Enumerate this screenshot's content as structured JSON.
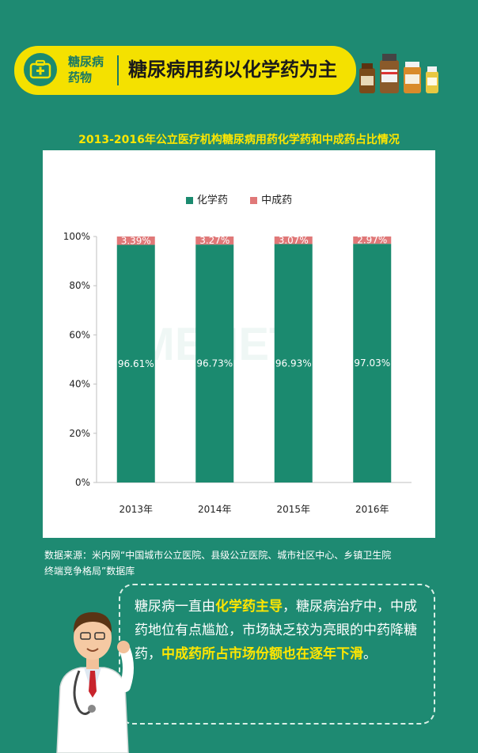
{
  "header": {
    "tag_lines": [
      "糖尿病",
      "药物"
    ],
    "title": "糖尿病用药以化学药为主"
  },
  "colors": {
    "background": "#1e8a72",
    "banner": "#f4e100",
    "chemical": "#1b8a6f",
    "tcm": "#e07878",
    "highlight": "#ffe600"
  },
  "icons": [
    "first-aid-kit-icon",
    "medicine-bottles-icon",
    "doctor-illustration"
  ],
  "chart_title": "2013-2016年公立医疗机构糖尿病用药化学药和中成药占比情况",
  "chart_data": {
    "type": "bar",
    "stacked": true,
    "percent": true,
    "categories": [
      "2013年",
      "2014年",
      "2015年",
      "2016年"
    ],
    "series": [
      {
        "name": "化学药",
        "values": [
          96.61,
          96.73,
          96.93,
          97.03
        ],
        "labels": [
          "96.61%",
          "96.73%",
          "96.93%",
          "97.03%"
        ]
      },
      {
        "name": "中成药",
        "values": [
          3.39,
          3.27,
          3.07,
          2.97
        ],
        "labels": [
          "3.39%",
          "3.27%",
          "3.07%",
          "2.97%"
        ]
      }
    ],
    "ylim": [
      0,
      100
    ],
    "y_ticks": [
      "0%",
      "20%",
      "40%",
      "60%",
      "80%",
      "100%"
    ],
    "legend_position": "top-center",
    "grid": false
  },
  "source_lines": [
    "数据来源：米内网“中国城市公立医院、县级公立医院、城市社区中心、乡镇卫生院",
    "终端竞争格局”数据库"
  ],
  "callout": {
    "part1": "糖尿病一直由",
    "hl1": "化学药主导",
    "part2": "，糖尿病治疗中，中成药地位有点尴尬，市场缺乏较为亮眼的中药降糖药，",
    "hl2": "中成药所占市场份额也在逐年下滑",
    "part3": "。"
  }
}
